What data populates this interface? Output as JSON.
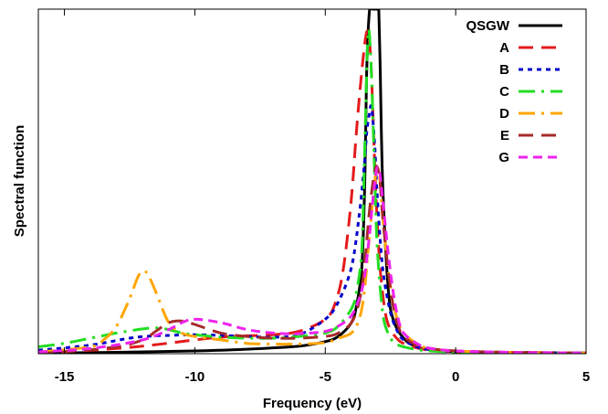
{
  "chart_data": {
    "type": "line",
    "title": "",
    "xlabel": "Frequency (eV)",
    "ylabel": "Spectral function",
    "xlim": [
      -16,
      5
    ],
    "ylim": [
      0,
      1
    ],
    "xticks": [
      "-15",
      "-10",
      "-5",
      "0",
      "5"
    ],
    "xtick_values": [
      -15,
      -10,
      -5,
      0,
      5
    ],
    "grid": false,
    "legend_position": "top-right",
    "series": [
      {
        "name": "QSGW",
        "color": "#000000",
        "dash": "solid",
        "x": [
          -16,
          -13,
          -10,
          -8,
          -6,
          -5,
          -4.5,
          -4,
          -3.8,
          -3.6,
          -3.5,
          -3.45,
          -3.4,
          -3.3,
          -3.2,
          -3.15,
          -3.1,
          -3.05,
          -3.0,
          -2.95,
          -2.9,
          -2.8,
          -2.6,
          -2.4,
          -2,
          -1.5,
          -1,
          0,
          2,
          5
        ],
        "y": [
          0.002,
          0.004,
          0.008,
          0.013,
          0.022,
          0.035,
          0.05,
          0.09,
          0.14,
          0.25,
          0.45,
          0.65,
          0.85,
          1.0,
          1.0,
          1.0,
          1.0,
          1.0,
          1.0,
          1.0,
          0.85,
          0.5,
          0.2,
          0.1,
          0.045,
          0.02,
          0.012,
          0.006,
          0.003,
          0.002
        ]
      },
      {
        "name": "A",
        "color": "#e41a1c",
        "dash": "long-dash",
        "x": [
          -16,
          -14,
          -12,
          -10,
          -9,
          -8,
          -7,
          -6,
          -5,
          -4.6,
          -4.3,
          -4.0,
          -3.8,
          -3.6,
          -3.45,
          -3.35,
          -3.25,
          -3.15,
          -3.05,
          -2.9,
          -2.7,
          -2.5,
          -2.2,
          -2,
          -1.5,
          -1,
          0,
          2,
          5
        ],
        "y": [
          0.005,
          0.01,
          0.022,
          0.04,
          0.048,
          0.052,
          0.055,
          0.065,
          0.1,
          0.15,
          0.25,
          0.45,
          0.65,
          0.82,
          0.92,
          0.93,
          0.85,
          0.65,
          0.45,
          0.25,
          0.12,
          0.07,
          0.04,
          0.03,
          0.017,
          0.01,
          0.006,
          0.004,
          0.002
        ]
      },
      {
        "name": "B",
        "color": "#0000cc",
        "dash": "short-dash",
        "x": [
          -16,
          -14,
          -12.5,
          -11.5,
          -11,
          -10,
          -9,
          -8,
          -7,
          -6,
          -5,
          -4.5,
          -4,
          -3.7,
          -3.5,
          -3.4,
          -3.3,
          -3.25,
          -3.2,
          -3.1,
          -3.0,
          -2.8,
          -2.5,
          -2.2,
          -2,
          -1.5,
          -1,
          0,
          2,
          5
        ],
        "y": [
          0.01,
          0.025,
          0.045,
          0.052,
          0.053,
          0.055,
          0.053,
          0.05,
          0.048,
          0.055,
          0.1,
          0.15,
          0.25,
          0.4,
          0.55,
          0.65,
          0.7,
          0.72,
          0.7,
          0.6,
          0.45,
          0.25,
          0.12,
          0.06,
          0.04,
          0.02,
          0.012,
          0.006,
          0.004,
          0.002
        ]
      },
      {
        "name": "C",
        "color": "#22dd22",
        "dash": "dash-dot",
        "x": [
          -16,
          -15,
          -14,
          -13,
          -12,
          -11.5,
          -11,
          -10.5,
          -10,
          -9,
          -8,
          -7,
          -6,
          -5,
          -4.5,
          -4,
          -3.8,
          -3.6,
          -3.5,
          -3.4,
          -3.35,
          -3.3,
          -3.2,
          -3.1,
          -3.0,
          -2.8,
          -2.6,
          -2.4,
          -2.2,
          -2,
          -1.5,
          -1,
          0,
          2,
          5
        ],
        "y": [
          0.02,
          0.03,
          0.045,
          0.06,
          0.072,
          0.075,
          0.07,
          0.06,
          0.055,
          0.048,
          0.045,
          0.045,
          0.05,
          0.06,
          0.08,
          0.13,
          0.18,
          0.3,
          0.55,
          0.85,
          0.93,
          0.92,
          0.75,
          0.5,
          0.3,
          0.12,
          0.06,
          0.035,
          0.025,
          0.02,
          0.012,
          0.008,
          0.005,
          0.003,
          0.002
        ]
      },
      {
        "name": "D",
        "color": "#ffa500",
        "dash": "dash-dot",
        "x": [
          -16,
          -14,
          -13.5,
          -13,
          -12.5,
          -12.2,
          -12,
          -11.8,
          -11.5,
          -11,
          -10.5,
          -10,
          -9,
          -8,
          -7,
          -6,
          -5,
          -4.5,
          -4,
          -3.7,
          -3.5,
          -3.3,
          -3.1,
          -3.0,
          -2.9,
          -2.8,
          -2.6,
          -2.4,
          -2.2,
          -2,
          -1.5,
          -1,
          0,
          2,
          5
        ],
        "y": [
          0.005,
          0.02,
          0.04,
          0.08,
          0.16,
          0.22,
          0.24,
          0.23,
          0.18,
          0.09,
          0.06,
          0.05,
          0.04,
          0.03,
          0.028,
          0.028,
          0.032,
          0.045,
          0.06,
          0.1,
          0.18,
          0.35,
          0.5,
          0.54,
          0.5,
          0.4,
          0.25,
          0.15,
          0.09,
          0.06,
          0.03,
          0.015,
          0.008,
          0.004,
          0.002
        ]
      },
      {
        "name": "E",
        "color": "#a52a2a",
        "dash": "long-dash",
        "x": [
          -16,
          -15,
          -13,
          -12,
          -11.5,
          -11,
          -10.5,
          -10,
          -9,
          -8,
          -7,
          -6,
          -5,
          -4.5,
          -4,
          -3.7,
          -3.5,
          -3.3,
          -3.1,
          -3.0,
          -2.9,
          -2.8,
          -2.6,
          -2.4,
          -2.2,
          -2,
          -1.5,
          -1,
          0,
          2,
          5
        ],
        "y": [
          0.002,
          0.005,
          0.02,
          0.04,
          0.065,
          0.09,
          0.095,
          0.085,
          0.06,
          0.05,
          0.045,
          0.045,
          0.05,
          0.06,
          0.09,
          0.15,
          0.25,
          0.42,
          0.53,
          0.54,
          0.5,
          0.4,
          0.25,
          0.14,
          0.08,
          0.05,
          0.025,
          0.015,
          0.008,
          0.004,
          0.002
        ]
      },
      {
        "name": "G",
        "color": "#ee22ee",
        "dash": "medium-dash",
        "x": [
          -16,
          -14,
          -12,
          -11,
          -10.5,
          -10,
          -9,
          -8,
          -7,
          -6,
          -5,
          -4.5,
          -4,
          -3.7,
          -3.5,
          -3.3,
          -3.1,
          -3.0,
          -2.9,
          -2.8,
          -2.6,
          -2.4,
          -2.2,
          -2,
          -1.5,
          -1,
          0,
          2,
          5
        ],
        "y": [
          0.005,
          0.015,
          0.04,
          0.07,
          0.09,
          0.1,
          0.09,
          0.07,
          0.06,
          0.058,
          0.065,
          0.08,
          0.11,
          0.16,
          0.22,
          0.35,
          0.5,
          0.54,
          0.52,
          0.45,
          0.3,
          0.18,
          0.1,
          0.06,
          0.03,
          0.016,
          0.008,
          0.004,
          0.002
        ]
      }
    ]
  }
}
